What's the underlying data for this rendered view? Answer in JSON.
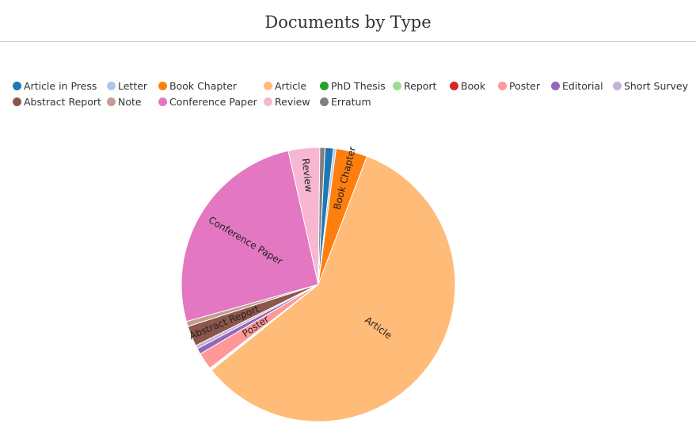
{
  "chart_data": {
    "type": "pie",
    "title": "Documents by Type",
    "legend_position": "top-left",
    "slices": [
      {
        "label": "Article in Press",
        "value": 1.0,
        "color": "#1f77b4"
      },
      {
        "label": "Letter",
        "value": 0.3,
        "color": "#aec7e8"
      },
      {
        "label": "Book Chapter",
        "value": 3.7,
        "color": "#ff7f0e"
      },
      {
        "label": "Article",
        "value": 58.4,
        "color": "#ffbb78"
      },
      {
        "label": "PhD Thesis",
        "value": 0.1,
        "color": "#2ca02c"
      },
      {
        "label": "Report",
        "value": 0.1,
        "color": "#98df8a"
      },
      {
        "label": "Book",
        "value": 0.1,
        "color": "#d62728"
      },
      {
        "label": "Poster",
        "value": 2.0,
        "color": "#ff9896"
      },
      {
        "label": "Editorial",
        "value": 0.7,
        "color": "#9467bd"
      },
      {
        "label": "Short Survey",
        "value": 0.4,
        "color": "#c5b0d5"
      },
      {
        "label": "Abstract Report",
        "value": 2.4,
        "color": "#8c564b"
      },
      {
        "label": "Note",
        "value": 0.6,
        "color": "#c49c94"
      },
      {
        "label": "Conference Paper",
        "value": 25.8,
        "color": "#e377c2"
      },
      {
        "label": "Review",
        "value": 3.7,
        "color": "#f7b6d2"
      },
      {
        "label": "Erratum",
        "value": 0.6,
        "color": "#7f7f7f"
      }
    ],
    "slice_labels": [
      "Book Chapter",
      "Article",
      "Poster",
      "Abstract Report",
      "Conference Paper",
      "Review"
    ]
  }
}
